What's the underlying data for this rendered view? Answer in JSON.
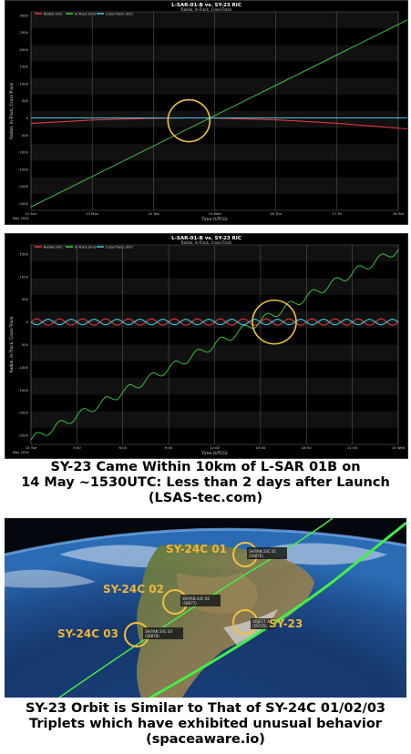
{
  "chart_data": [
    {
      "type": "line",
      "title": "L-SAR-01-B vs. SY-23 RIC",
      "subtitle": "Radial, In-Track, Cross-Track",
      "xlabel": "Time (UTCG)",
      "ylabel": "Radial, In-Track, Cross-Track",
      "x_ticks": [
        "12 Sun",
        "13 Mon",
        "14 Tue",
        "15 Wed",
        "16 Thu",
        "17 Fri",
        "18 Sat"
      ],
      "x_sub": "May 2024",
      "y_ticks": [
        "3000",
        "2500",
        "2000",
        "1500",
        "1000",
        "500",
        "0",
        "-500",
        "-1000",
        "-1500",
        "-2000",
        "-2500"
      ],
      "ylim": [
        -2700,
        3100
      ],
      "series": [
        {
          "name": "Radial (km)",
          "color": "#e8343a",
          "x": [
            0,
            1,
            2,
            2.6,
            3,
            4,
            5,
            6,
            6.3
          ],
          "y": [
            -160,
            -60,
            -10,
            0,
            -5,
            -55,
            -155,
            -300,
            -340
          ]
        },
        {
          "name": "In-Track (km)",
          "color": "#3fd13f",
          "x": [
            0,
            6.3
          ],
          "y": [
            -2600,
            3000
          ]
        },
        {
          "name": "Cross-Track (km)",
          "color": "#3ec8e8",
          "x": [
            0,
            6.3
          ],
          "y": [
            0,
            0
          ]
        }
      ]
    },
    {
      "type": "line",
      "title": "L-SAR-01-B vs. SY-23 RIC",
      "subtitle": "Radial, In-Track, Cross-Track",
      "xlabel": "Time (UTCG)",
      "ylabel": "Radial, In-Track, Cross-Track",
      "x_ticks": [
        "14 Tue",
        "3:00",
        "6:00",
        "9:00",
        "12:00",
        "15:00",
        "18:00",
        "21:00",
        "15 Wed"
      ],
      "x_sub": "May 2024",
      "y_ticks": [
        "1500",
        "1000",
        "500",
        "0",
        "-500",
        "-1000",
        "-1500",
        "-2000",
        "-2500"
      ],
      "ylim": [
        -2700,
        1700
      ],
      "series": [
        {
          "name": "Radial (km)",
          "color": "#e8343a",
          "wave": true
        },
        {
          "name": "In-Track (km)",
          "color": "#3fd13f",
          "stair": true
        },
        {
          "name": "Cross-Track (km)",
          "color": "#3ec8e8",
          "wave": true
        }
      ]
    }
  ],
  "captions": {
    "chart": [
      "SY-23 Came Within 10km of L-SAR 01B on",
      "14 May ~1530UTC: Less than 2 days after Launch",
      "(LSAS-tec.com)"
    ],
    "globe": [
      "SY-23 Orbit is Similar to That of SY-24C 01/02/03",
      "Triplets which have exhibited unusual behavior",
      "(spaceaware.io)"
    ]
  },
  "globe": {
    "labels": [
      "SY-24C 01",
      "SY-24C 02",
      "SY-24C 03",
      "SY-23"
    ],
    "tags": [
      {
        "line1": "SHIYAN 24C 01",
        "line2": "(58876)"
      },
      {
        "line1": "SHIYAN 24C 02",
        "line2": "(58877)"
      },
      {
        "line1": "SHIYAN 24C 03",
        "line2": "(58878)"
      },
      {
        "line1": "OBJECT A",
        "line2": "(59725)"
      }
    ],
    "label_color": "#f0b53a",
    "track_color": "#44ee44"
  }
}
